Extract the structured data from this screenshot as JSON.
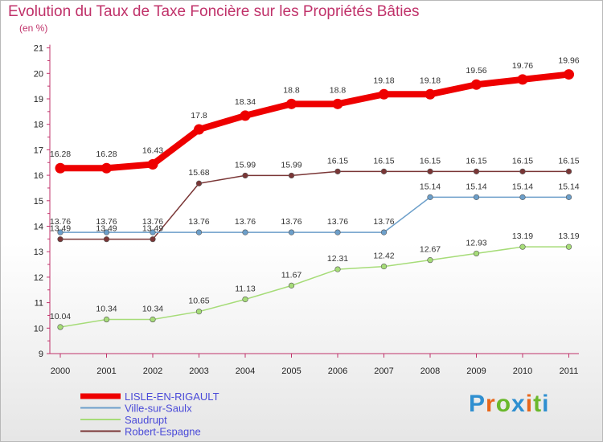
{
  "chart_data": {
    "type": "line",
    "title": "Evolution du Taux de Taxe Foncière sur les Propriétés Bâties",
    "subtitle": "(en %)",
    "x": [
      "2000",
      "2001",
      "2002",
      "2003",
      "2004",
      "2005",
      "2006",
      "2007",
      "2008",
      "2009",
      "2010",
      "2011"
    ],
    "ylim": [
      9,
      21
    ],
    "yticks": [
      "9",
      "10",
      "11",
      "12",
      "13",
      "14",
      "15",
      "16",
      "17",
      "18",
      "19",
      "20",
      "21"
    ],
    "grid": false,
    "legend_position": "bottom-left",
    "series": [
      {
        "name": "LISLE-EN-RIGAULT",
        "color": "#ee0000",
        "values": [
          16.28,
          16.28,
          16.43,
          17.8,
          18.34,
          18.8,
          18.8,
          19.18,
          19.18,
          19.56,
          19.76,
          19.96
        ],
        "labels": [
          "16.28",
          "16.28",
          "16.43",
          "17.8",
          "18.34",
          "18.8",
          "18.8",
          "19.18",
          "19.18",
          "19.56",
          "19.76",
          "19.96"
        ]
      },
      {
        "name": "Ville-sur-Saulx",
        "color": "#6c9fca",
        "values": [
          13.76,
          13.76,
          13.76,
          13.76,
          13.76,
          13.76,
          13.76,
          13.76,
          15.14,
          15.14,
          15.14,
          15.14
        ],
        "labels": [
          "13.76",
          "13.76",
          "13.76",
          "13.76",
          "13.76",
          "13.76",
          "13.76",
          "13.76",
          "15.14",
          "15.14",
          "15.14",
          "15.14"
        ]
      },
      {
        "name": "Saudrupt",
        "color": "#a6dc78",
        "values": [
          10.04,
          10.34,
          10.34,
          10.65,
          11.13,
          11.67,
          12.31,
          12.42,
          12.67,
          12.93,
          13.19,
          13.19
        ],
        "labels": [
          "10.04",
          "10.34",
          "10.34",
          "10.65",
          "11.13",
          "11.67",
          "12.31",
          "12.42",
          "12.67",
          "12.93",
          "13.19",
          "13.19"
        ]
      },
      {
        "name": "Robert-Espagne",
        "color": "#7a3636",
        "values": [
          13.49,
          13.49,
          13.49,
          15.68,
          15.99,
          15.99,
          16.15,
          16.15,
          16.15,
          16.15,
          16.15,
          16.15
        ],
        "labels": [
          "13.49",
          "13.49",
          "13.49",
          "15.68",
          "15.99",
          "15.99",
          "16.15",
          "16.15",
          "16.15",
          "16.15",
          "16.15",
          "16.15"
        ]
      }
    ]
  },
  "logo": {
    "text": "Proxiti",
    "letters": [
      "P",
      "r",
      "o",
      "x",
      "i",
      "t",
      "i"
    ],
    "colors": [
      "#2f8fd0",
      "#e8661a",
      "#6ab82c",
      "#2f8fd0",
      "#e8661a",
      "#6ab82c",
      "#2f8fd0"
    ]
  }
}
